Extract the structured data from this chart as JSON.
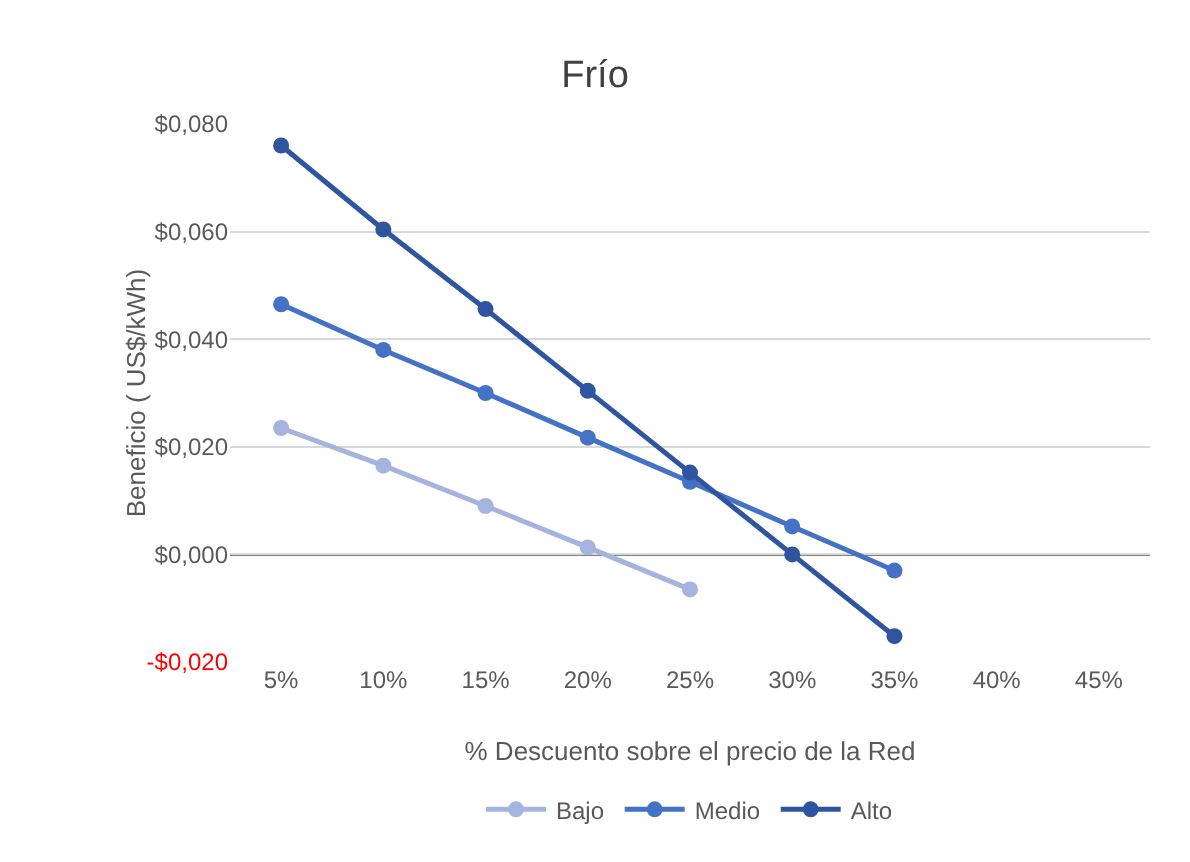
{
  "chart_data": {
    "type": "line",
    "title": "Frío",
    "xlabel": "% Descuento sobre el precio de la Red",
    "ylabel": "Beneficio ( US$/kWh)",
    "categories": [
      "5%",
      "10%",
      "15%",
      "20%",
      "25%",
      "30%",
      "35%",
      "40%",
      "45%"
    ],
    "series": [
      {
        "name": "Bajo",
        "color": "#a5b4de",
        "values": [
          0.0235,
          0.0165,
          0.009,
          0.0013,
          -0.0065,
          null,
          null,
          null,
          null
        ]
      },
      {
        "name": "Medio",
        "color": "#4472c4",
        "values": [
          0.0465,
          0.038,
          0.03,
          0.0217,
          0.0135,
          0.0052,
          -0.003,
          null,
          null
        ]
      },
      {
        "name": "Alto",
        "color": "#2f55a0",
        "values": [
          0.076,
          0.0604,
          0.0456,
          0.0304,
          0.0152,
          0.0,
          -0.0152,
          null,
          null
        ]
      }
    ],
    "ylim": [
      -0.02,
      0.08
    ],
    "yticks": [
      {
        "value": -0.02,
        "label": "-$0,020"
      },
      {
        "value": 0,
        "label": "$0,000"
      },
      {
        "value": 0.02,
        "label": "$0,020"
      },
      {
        "value": 0.04,
        "label": "$0,040"
      },
      {
        "value": 0.06,
        "label": "$0,060"
      },
      {
        "value": 0.08,
        "label": "$0,080"
      }
    ],
    "ref_lines": [
      {
        "axis": "y",
        "value": 0,
        "color": "#000000"
      }
    ],
    "grid": "y",
    "legend": "bottom",
    "marker": "circle",
    "line_style": "solid"
  }
}
